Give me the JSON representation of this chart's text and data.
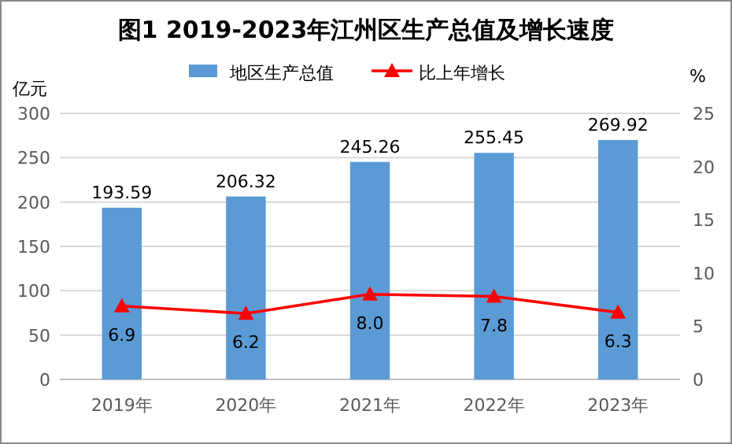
{
  "chart_data": {
    "type": "bar",
    "title": "图1 2019-2023年江州区生产总值及增长速度",
    "ylabel": "亿元",
    "y2label": "%",
    "categories": [
      "2019年",
      "2020年",
      "2021年",
      "2022年",
      "2023年"
    ],
    "series": [
      {
        "name": "地区生产总值",
        "color": "#5b9bd5",
        "values": [
          193.59,
          206.32,
          245.26,
          255.45,
          269.92
        ]
      },
      {
        "name": "比上年增长",
        "type": "line",
        "axis": "y2",
        "color": "#ff0000",
        "marker": "triangle",
        "values": [
          6.9,
          6.2,
          8.0,
          7.8,
          6.3
        ],
        "value_labels": [
          "6.9",
          "6.2",
          "8.0",
          "7.8",
          "6.3"
        ]
      }
    ],
    "ylim": [
      0,
      300
    ],
    "yticks": [
      0,
      50,
      100,
      150,
      200,
      250,
      300
    ],
    "y2lim": [
      0,
      25
    ],
    "y2ticks": [
      0,
      5,
      10,
      15,
      20,
      25
    ],
    "grid": "y",
    "legend": "top",
    "data_labels": true
  }
}
